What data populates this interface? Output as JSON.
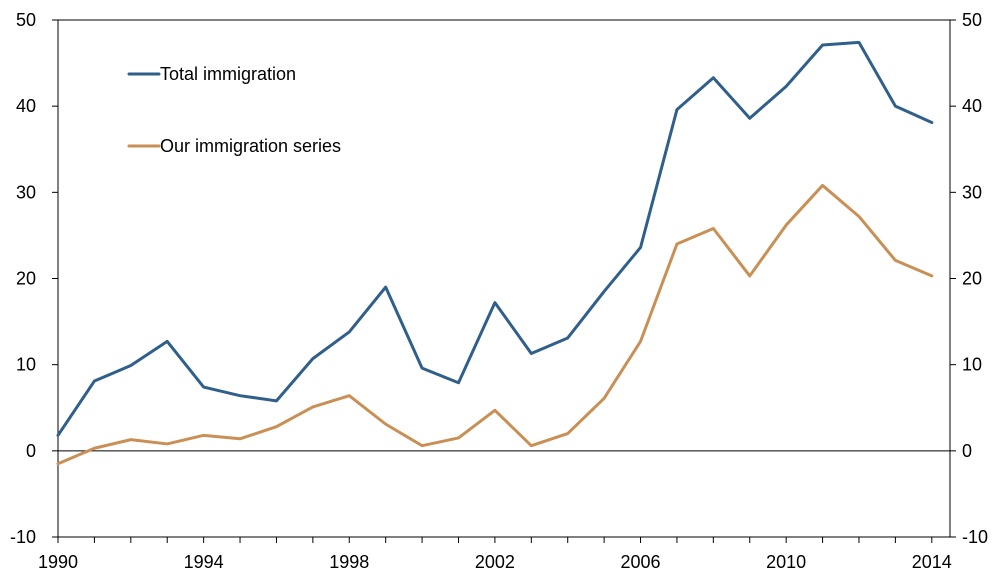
{
  "chart_data": {
    "type": "line",
    "x": [
      1990,
      1991,
      1992,
      1993,
      1994,
      1995,
      1996,
      1997,
      1998,
      1999,
      2000,
      2001,
      2002,
      2003,
      2004,
      2005,
      2006,
      2007,
      2008,
      2009,
      2010,
      2011,
      2012,
      2013,
      2014
    ],
    "series": [
      {
        "name": "Total immigration",
        "color": "#2f5f8a",
        "values": [
          1.8,
          8.1,
          9.9,
          12.7,
          7.4,
          6.4,
          5.8,
          10.7,
          13.8,
          19.0,
          9.6,
          7.9,
          17.2,
          11.3,
          13.1,
          18.5,
          23.6,
          39.6,
          43.3,
          38.6,
          42.3,
          47.1,
          47.4,
          40.0,
          38.1
        ]
      },
      {
        "name": "Our immigration series",
        "color": "#c98f55",
        "values": [
          -1.5,
          0.3,
          1.3,
          0.8,
          1.8,
          1.4,
          2.8,
          5.1,
          6.4,
          3.1,
          0.6,
          1.5,
          4.7,
          0.6,
          2.0,
          6.1,
          12.7,
          24.0,
          25.8,
          20.3,
          26.2,
          30.8,
          27.2,
          22.1,
          20.3
        ]
      }
    ],
    "xticks": [
      1990,
      1994,
      1998,
      2002,
      2006,
      2010,
      2014
    ],
    "yticks": [
      -10,
      0,
      10,
      20,
      30,
      40,
      50
    ],
    "ylim": [
      -10,
      50
    ],
    "xlim": [
      1990,
      2014.5
    ],
    "grid": false,
    "legend_position": "top-left",
    "title": "",
    "xlabel": "",
    "ylabel": ""
  }
}
